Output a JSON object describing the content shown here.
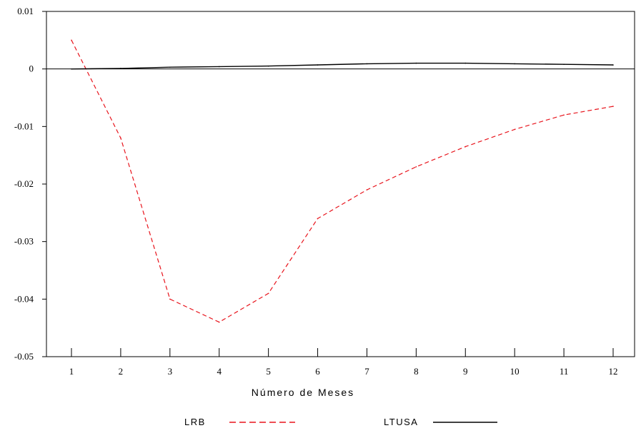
{
  "chart_data": {
    "type": "line",
    "x": [
      1,
      2,
      3,
      4,
      5,
      6,
      7,
      8,
      9,
      10,
      11,
      12
    ],
    "xlabel": "Número de Meses",
    "ylabel": "",
    "title": "",
    "ylim": [
      -0.05,
      0.01
    ],
    "xticks": [
      "1",
      "2",
      "3",
      "4",
      "5",
      "6",
      "7",
      "8",
      "9",
      "10",
      "11",
      "12"
    ],
    "yticks": [
      "0.01",
      "0",
      "-0.01",
      "-0.02",
      "-0.03",
      "-0.04",
      "-0.05"
    ],
    "grid": false,
    "legend_position": "bottom",
    "series": [
      {
        "name": "LRB",
        "color": "#e8141c",
        "style": "dashed",
        "values": [
          0.005,
          -0.012,
          -0.04,
          -0.044,
          -0.039,
          -0.026,
          -0.021,
          -0.017,
          -0.0135,
          -0.0105,
          -0.008,
          -0.0065
        ]
      },
      {
        "name": "LTUSA",
        "color": "#000000",
        "style": "solid",
        "values": [
          0.0,
          0.0001,
          0.0003,
          0.0004,
          0.0005,
          0.0007,
          0.0009,
          0.001,
          0.001,
          0.0009,
          0.0008,
          0.0007
        ]
      }
    ]
  }
}
